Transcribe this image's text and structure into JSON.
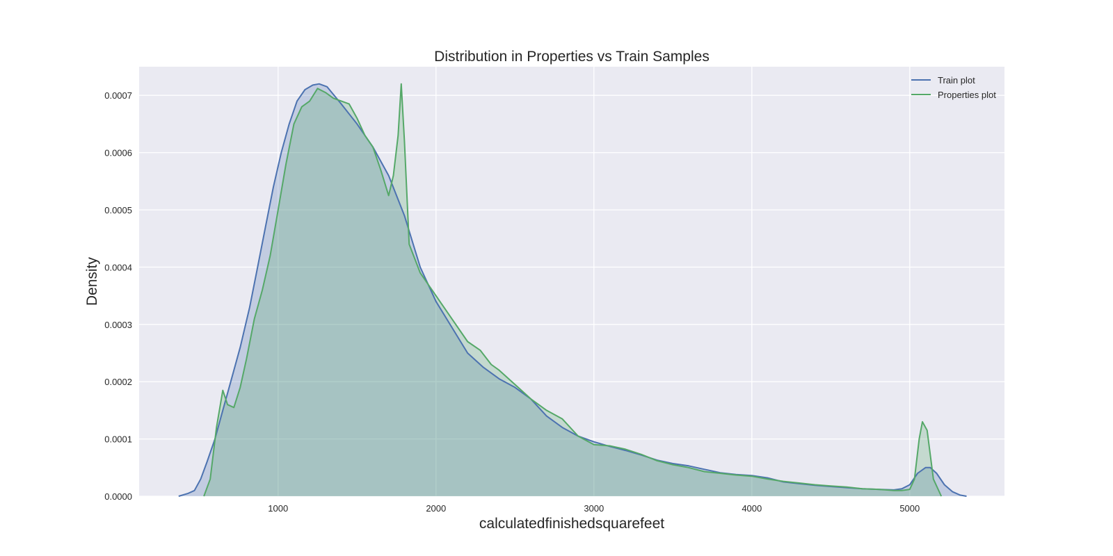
{
  "chart_data": {
    "type": "area",
    "title": "Distribution in Properties vs Train Samples",
    "xlabel": "calculatedfinishedsquarefeet",
    "ylabel": "Density",
    "xlim": [
      120,
      5600
    ],
    "ylim": [
      0,
      0.00075
    ],
    "xticks": [
      1000,
      2000,
      3000,
      4000,
      5000
    ],
    "xtick_labels": [
      "1000",
      "2000",
      "3000",
      "4000",
      "5000"
    ],
    "yticks": [
      0,
      0.0001,
      0.0002,
      0.0003,
      0.0004,
      0.0005,
      0.0006,
      0.0007
    ],
    "ytick_labels": [
      "0.0000",
      "0.0001",
      "0.0002",
      "0.0003",
      "0.0004",
      "0.0005",
      "0.0006",
      "0.0007"
    ],
    "grid": true,
    "legend_position": "top-right",
    "series": [
      {
        "name": "Train plot",
        "color": "#4c72b0",
        "fill": "#4c72b0",
        "points": [
          [
            370,
            0
          ],
          [
            430,
            5e-06
          ],
          [
            470,
            1e-05
          ],
          [
            510,
            3e-05
          ],
          [
            550,
            6e-05
          ],
          [
            600,
            0.0001
          ],
          [
            650,
            0.00015
          ],
          [
            700,
            0.0002
          ],
          [
            760,
            0.00026
          ],
          [
            820,
            0.00033
          ],
          [
            870,
            0.0004
          ],
          [
            920,
            0.00047
          ],
          [
            970,
            0.00054
          ],
          [
            1020,
            0.0006
          ],
          [
            1070,
            0.00065
          ],
          [
            1120,
            0.00069
          ],
          [
            1170,
            0.00071
          ],
          [
            1220,
            0.000718
          ],
          [
            1260,
            0.00072
          ],
          [
            1310,
            0.000715
          ],
          [
            1400,
            0.000685
          ],
          [
            1500,
            0.00065
          ],
          [
            1600,
            0.00061
          ],
          [
            1700,
            0.00056
          ],
          [
            1800,
            0.00049
          ],
          [
            1900,
            0.0004
          ],
          [
            2000,
            0.00034
          ],
          [
            2100,
            0.000295
          ],
          [
            2200,
            0.00025
          ],
          [
            2300,
            0.000225
          ],
          [
            2400,
            0.000205
          ],
          [
            2500,
            0.00019
          ],
          [
            2600,
            0.00017
          ],
          [
            2700,
            0.00014
          ],
          [
            2800,
            0.00012
          ],
          [
            2900,
            0.000105
          ],
          [
            3000,
            9.5e-05
          ],
          [
            3100,
            8.7e-05
          ],
          [
            3200,
            8e-05
          ],
          [
            3300,
            7.2e-05
          ],
          [
            3400,
            6.3e-05
          ],
          [
            3500,
            5.7e-05
          ],
          [
            3600,
            5.3e-05
          ],
          [
            3700,
            4.7e-05
          ],
          [
            3800,
            4.1e-05
          ],
          [
            3900,
            3.8e-05
          ],
          [
            4000,
            3.6e-05
          ],
          [
            4100,
            3.2e-05
          ],
          [
            4200,
            2.5e-05
          ],
          [
            4300,
            2.2e-05
          ],
          [
            4400,
            1.9e-05
          ],
          [
            4500,
            1.7e-05
          ],
          [
            4600,
            1.5e-05
          ],
          [
            4700,
            1.3e-05
          ],
          [
            4800,
            1.2e-05
          ],
          [
            4900,
            1.1e-05
          ],
          [
            4950,
            1.3e-05
          ],
          [
            5000,
            2e-05
          ],
          [
            5050,
            4e-05
          ],
          [
            5100,
            5e-05
          ],
          [
            5130,
            5e-05
          ],
          [
            5170,
            4e-05
          ],
          [
            5220,
            2e-05
          ],
          [
            5270,
            8e-06
          ],
          [
            5320,
            2e-06
          ],
          [
            5360,
            0
          ]
        ]
      },
      {
        "name": "Properties plot",
        "color": "#55a868",
        "fill": "#55a868",
        "points": [
          [
            530,
            0
          ],
          [
            570,
            3e-05
          ],
          [
            610,
            0.00012
          ],
          [
            650,
            0.000185
          ],
          [
            680,
            0.00016
          ],
          [
            720,
            0.000155
          ],
          [
            760,
            0.00019
          ],
          [
            800,
            0.00024
          ],
          [
            850,
            0.00031
          ],
          [
            900,
            0.00036
          ],
          [
            950,
            0.00042
          ],
          [
            1000,
            0.0005
          ],
          [
            1050,
            0.00058
          ],
          [
            1100,
            0.00065
          ],
          [
            1150,
            0.00068
          ],
          [
            1200,
            0.00069
          ],
          [
            1250,
            0.000712
          ],
          [
            1300,
            0.000705
          ],
          [
            1350,
            0.000695
          ],
          [
            1400,
            0.00069
          ],
          [
            1450,
            0.000685
          ],
          [
            1500,
            0.00066
          ],
          [
            1550,
            0.00063
          ],
          [
            1600,
            0.00061
          ],
          [
            1650,
            0.00057
          ],
          [
            1700,
            0.000525
          ],
          [
            1730,
            0.00056
          ],
          [
            1760,
            0.00063
          ],
          [
            1780,
            0.00072
          ],
          [
            1800,
            0.00062
          ],
          [
            1830,
            0.00044
          ],
          [
            1900,
            0.00039
          ],
          [
            1950,
            0.00037
          ],
          [
            2000,
            0.00035
          ],
          [
            2100,
            0.00031
          ],
          [
            2200,
            0.00027
          ],
          [
            2280,
            0.000255
          ],
          [
            2350,
            0.00023
          ],
          [
            2400,
            0.00022
          ],
          [
            2500,
            0.000195
          ],
          [
            2600,
            0.00017
          ],
          [
            2700,
            0.00015
          ],
          [
            2800,
            0.000135
          ],
          [
            2900,
            0.000105
          ],
          [
            3000,
            9e-05
          ],
          [
            3100,
            8.8e-05
          ],
          [
            3200,
            8.2e-05
          ],
          [
            3300,
            7.3e-05
          ],
          [
            3400,
            6.2e-05
          ],
          [
            3500,
            5.5e-05
          ],
          [
            3600,
            5e-05
          ],
          [
            3700,
            4.3e-05
          ],
          [
            3800,
            4e-05
          ],
          [
            3900,
            3.7e-05
          ],
          [
            4000,
            3.5e-05
          ],
          [
            4100,
            3e-05
          ],
          [
            4200,
            2.6e-05
          ],
          [
            4300,
            2.3e-05
          ],
          [
            4400,
            2e-05
          ],
          [
            4500,
            1.8e-05
          ],
          [
            4600,
            1.6e-05
          ],
          [
            4700,
            1.3e-05
          ],
          [
            4800,
            1.2e-05
          ],
          [
            4900,
            1e-05
          ],
          [
            4950,
            1e-05
          ],
          [
            5000,
            1.2e-05
          ],
          [
            5030,
            3e-05
          ],
          [
            5060,
            0.0001
          ],
          [
            5080,
            0.00013
          ],
          [
            5110,
            0.000115
          ],
          [
            5150,
            3e-05
          ],
          [
            5200,
            0
          ]
        ]
      }
    ]
  }
}
